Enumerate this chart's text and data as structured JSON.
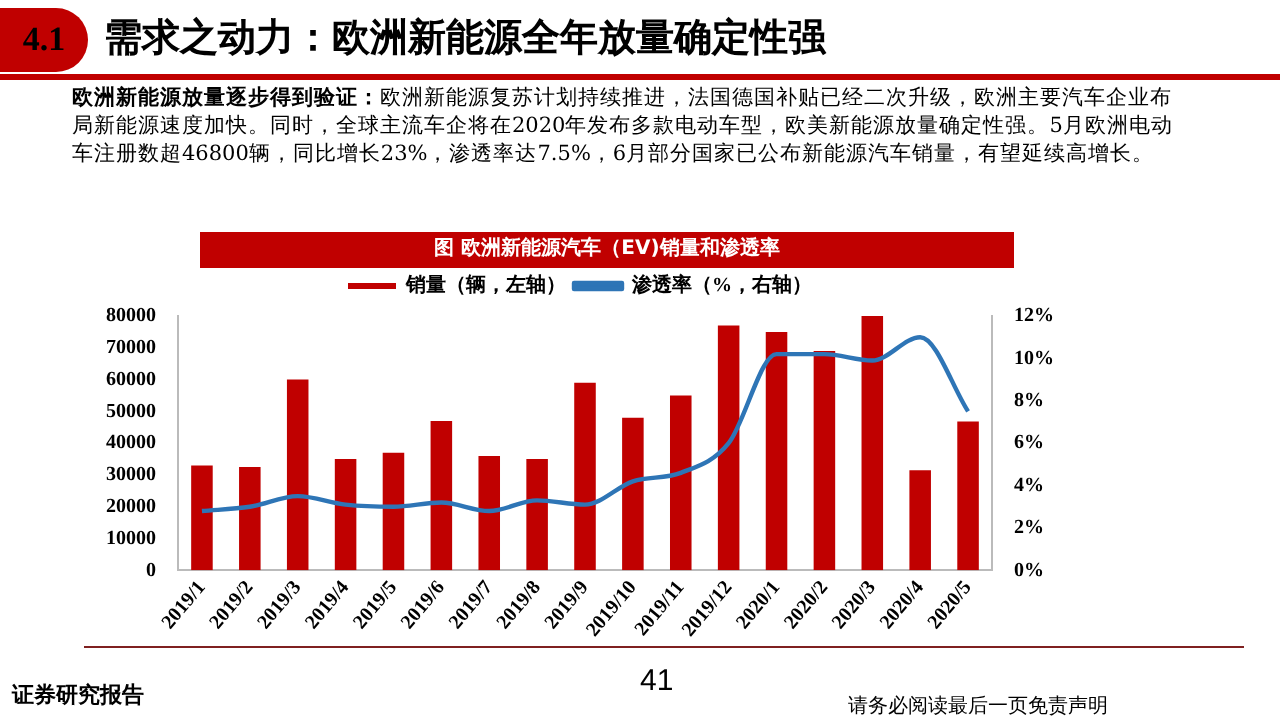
{
  "chart_data": {
    "type": "bar",
    "title": "需求之动力：欧洲新能源全年放量确定性强",
    "subtitle": "图 欧洲新能源汽车（EV)销量和渗透率",
    "categories": [
      "2019/1",
      "2019/2",
      "2019/3",
      "2019/4",
      "2019/5",
      "2019/6",
      "2019/7",
      "2019/8",
      "2019/9",
      "2019/10",
      "2019/11",
      "2019/12",
      "2020/1",
      "2020/2",
      "2020/3",
      "2020/4",
      "2020/5"
    ],
    "series": [
      {
        "name": "销量（辆，左轴）",
        "color": "#c00000",
        "values": [
          33000,
          32500,
          60000,
          35000,
          37000,
          47000,
          36000,
          35000,
          59000,
          48000,
          55000,
          77000,
          75000,
          69000,
          80000,
          31500,
          46800
        ]
      },
      {
        "name": "渗透率（%，右轴）",
        "type": "line",
        "axis": "y2",
        "color": "#2e75b6",
        "values": [
          2.8,
          3.0,
          3.5,
          3.1,
          3.0,
          3.2,
          2.8,
          3.3,
          3.1,
          4.2,
          4.6,
          6.0,
          10.2,
          10.2,
          9.9,
          11.0,
          7.5
        ]
      }
    ],
    "ylim": [
      0,
      80000
    ],
    "yticks": [
      0,
      10000,
      20000,
      30000,
      40000,
      50000,
      60000,
      70000,
      80000
    ],
    "y2lim": [
      0,
      12
    ],
    "y2ticks": [
      {
        "value": 0,
        "label": "0%"
      },
      {
        "value": 2,
        "label": "2%"
      },
      {
        "value": 4,
        "label": "4%"
      },
      {
        "value": 6,
        "label": "6%"
      },
      {
        "value": 8,
        "label": "8%"
      },
      {
        "value": 10,
        "label": "10%"
      },
      {
        "value": 12,
        "label": "12%"
      }
    ],
    "legend": "top",
    "grid": false,
    "marker": "none",
    "annotations": [
      "4.1",
      "欧洲新能源放量逐步得到验证：",
      "欧洲新能源复苏计划持续推进，法国德国补贴已经二次升级，欧洲主要汽车企业布局新能源速度加快。同时，全球主流车企将在2020年发布多款电动车型，欧美新能源放量确定性强。5月欧洲电动车注册数超46800辆，同比增长23%，渗透率达7.5%，6月部分国家已公布新能源汽车销量，有望延续高增长。",
      "证券研究报告",
      "41",
      "请务必阅读最后一页免责声明"
    ]
  }
}
